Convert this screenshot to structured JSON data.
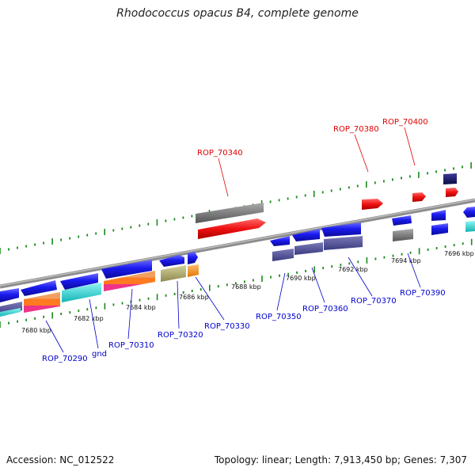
{
  "title": "Rhodococcus opacus B4, complete genome",
  "footer": {
    "accession": "Accession: NC_012522",
    "summary": "Topology: linear; Length: 7,913,450 bp; Genes: 7,307"
  },
  "colors": {
    "backbone": "#8c8c8c",
    "tick": "#1a8a1a",
    "highlight_label": "#dd0000",
    "gene_label": "#0000cc",
    "gene_blue": "#1a1aee",
    "gene_grey": "#777777",
    "gene_red": "#ee1111",
    "gene_navy": "#101060",
    "gene_purple": "#4c4c9a",
    "gene_cyan": "#22dddd",
    "gene_olive": "#b4b070",
    "gene_orange": "#ff9a1a"
  },
  "position_labels": [
    "7680 kbp",
    "7682 kbp",
    "7684 kbp",
    "7686 kbp",
    "7688 kbp",
    "7690 kbp",
    "7692 kbp",
    "7694 kbp",
    "7696 kbp"
  ],
  "gene_labels": [
    "ROP_70290",
    "gnd",
    "ROP_70310",
    "ROP_70320",
    "ROP_70330",
    "ROP_70350",
    "ROP_70360",
    "ROP_70370",
    "ROP_70390"
  ],
  "highlighted_labels": [
    "ROP_70340",
    "ROP_70380",
    "ROP_70400"
  ]
}
